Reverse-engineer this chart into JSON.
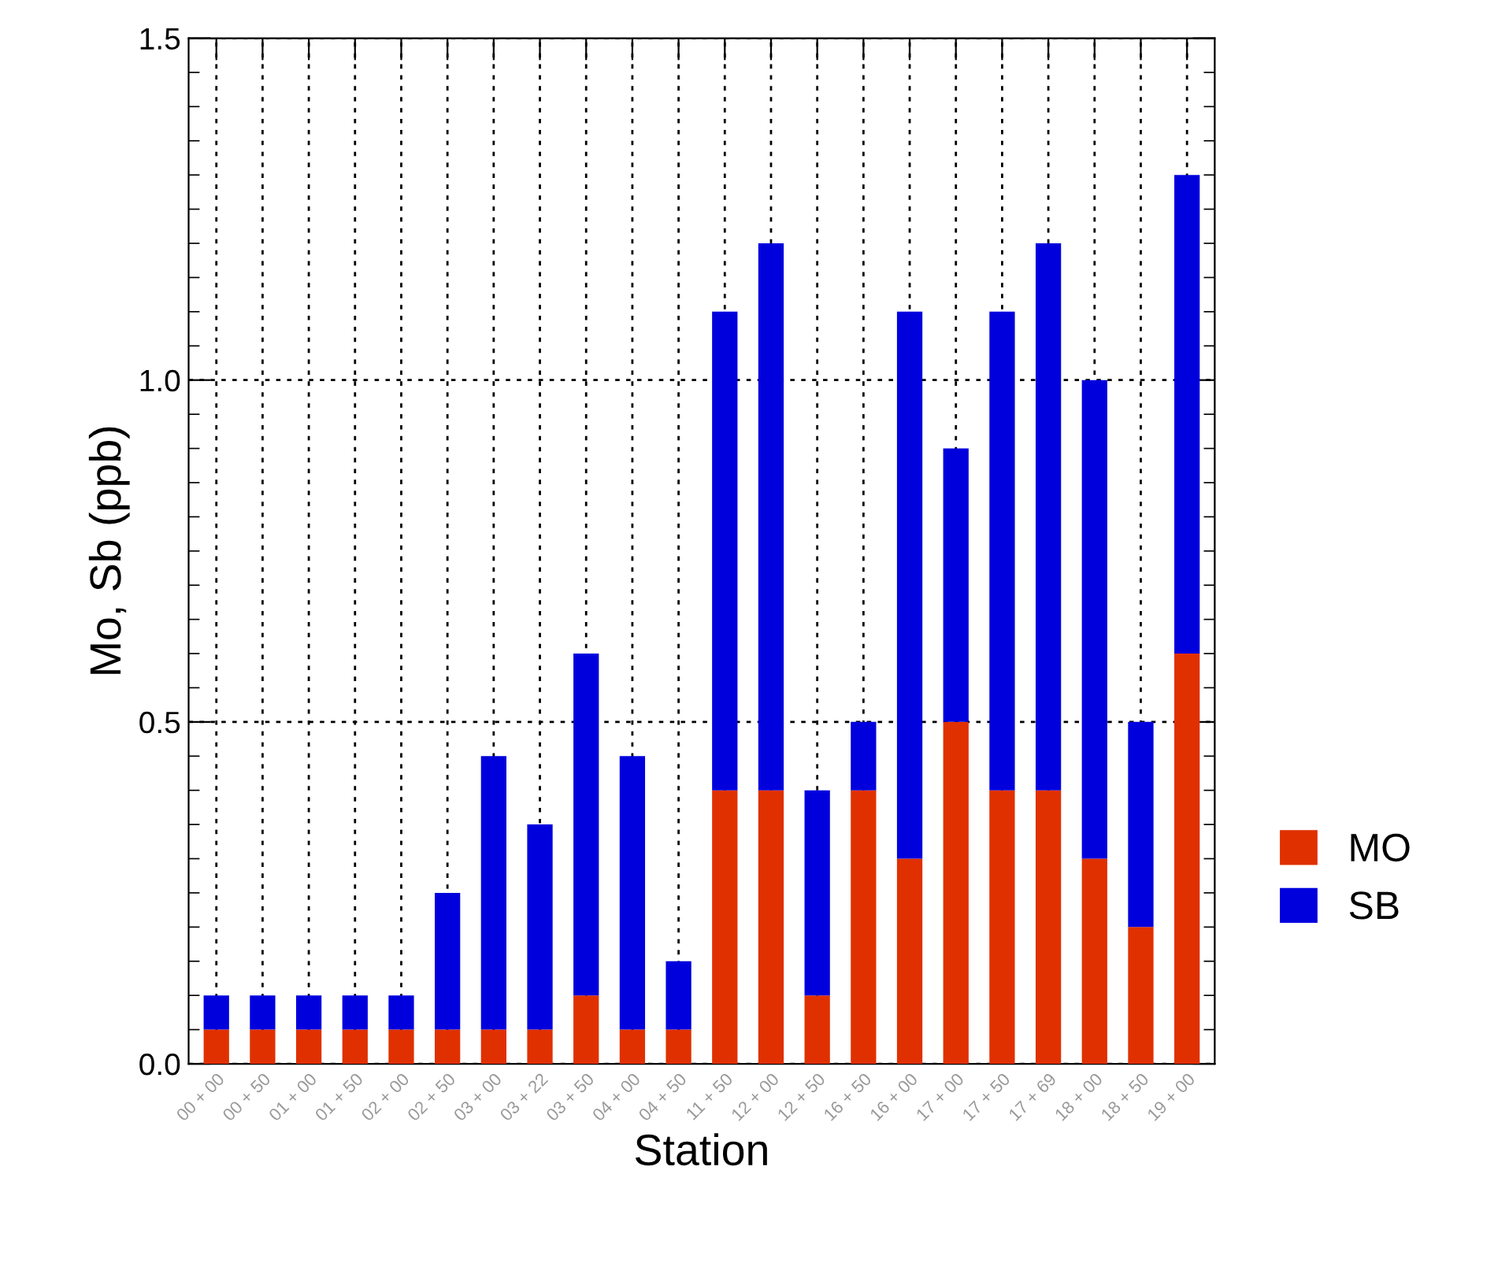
{
  "chart_data": {
    "type": "bar",
    "stacked": true,
    "xlabel": "Station",
    "ylabel": "Mo, Sb (ppb)",
    "categories": [
      "00 + 00",
      "00 + 50",
      "01 + 00",
      "01 + 50",
      "02 + 00",
      "02 + 50",
      "03 + 00",
      "03 + 22",
      "03 + 50",
      "04 + 00",
      "04 + 50",
      "11 + 50",
      "12 + 00",
      "12 + 50",
      "16 + 50",
      "16 + 00",
      "17 + 00",
      "17 + 50",
      "17 + 69",
      "18 + 00",
      "18 + 50",
      "19 + 00"
    ],
    "series": [
      {
        "name": "MO",
        "color": "#e03000",
        "values": [
          0.05,
          0.05,
          0.05,
          0.05,
          0.05,
          0.05,
          0.05,
          0.05,
          0.1,
          0.05,
          0.05,
          0.4,
          0.4,
          0.1,
          0.4,
          0.3,
          0.5,
          0.4,
          0.4,
          0.3,
          0.2,
          0.6
        ]
      },
      {
        "name": "SB",
        "color": "#0000dd",
        "values": [
          0.05,
          0.05,
          0.05,
          0.05,
          0.05,
          0.2,
          0.4,
          0.3,
          0.5,
          0.4,
          0.1,
          0.7,
          0.8,
          0.3,
          0.1,
          0.8,
          0.4,
          0.7,
          0.8,
          0.7,
          0.3,
          0.7
        ]
      }
    ],
    "ylim": [
      0,
      1.5
    ],
    "yticks": [
      {
        "value": 0,
        "label": "0.0"
      },
      0.5,
      {
        "value": 1,
        "label": "1.0"
      },
      1.5
    ],
    "grid": true,
    "legend": "right"
  }
}
